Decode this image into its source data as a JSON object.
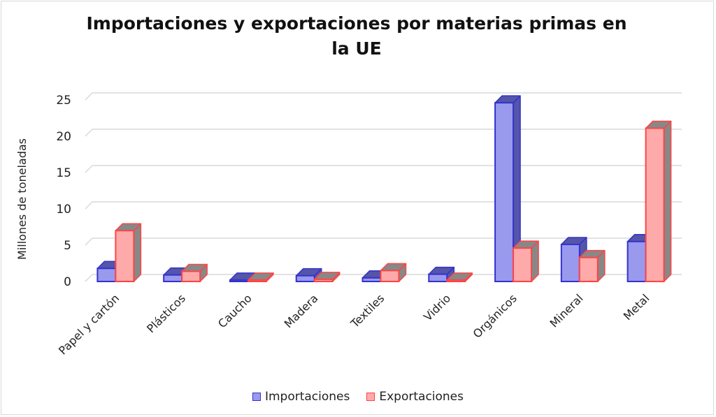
{
  "colors": {
    "importaciones_fill": "#9999ee",
    "importaciones_stroke": "#3333cc",
    "importaciones_side": "#5555aa",
    "exportaciones_fill": "#ffaaaa",
    "exportaciones_stroke": "#ff4444",
    "exportaciones_side": "#888888",
    "gridline": "#d9d9d9"
  },
  "chart_data": {
    "type": "bar",
    "title": "Importaciones y exportaciones por materias primas en la UE",
    "title_lines": [
      "Importaciones y exportaciones por materias primas en",
      "la UE"
    ],
    "xlabel": "",
    "ylabel": "Millones de toneladas",
    "ylim": [
      0,
      25
    ],
    "yticks": [
      "0",
      "5",
      "10",
      "15",
      "20",
      "25"
    ],
    "grid": true,
    "legend_position": "bottom",
    "categories": [
      "Papel y cartón",
      "Plásticos",
      "Caucho",
      "Madera",
      "Textiles",
      "Vidrio",
      "Orgánicos",
      "Mineral",
      "Metal"
    ],
    "series": [
      {
        "name": "Importaciones",
        "values": [
          1.8,
          0.9,
          0.2,
          0.8,
          0.5,
          1.0,
          24.6,
          5.1,
          5.5
        ]
      },
      {
        "name": "Exportaciones",
        "values": [
          7.0,
          1.4,
          0.2,
          0.3,
          1.5,
          0.2,
          4.6,
          3.3,
          21.1
        ]
      }
    ]
  }
}
